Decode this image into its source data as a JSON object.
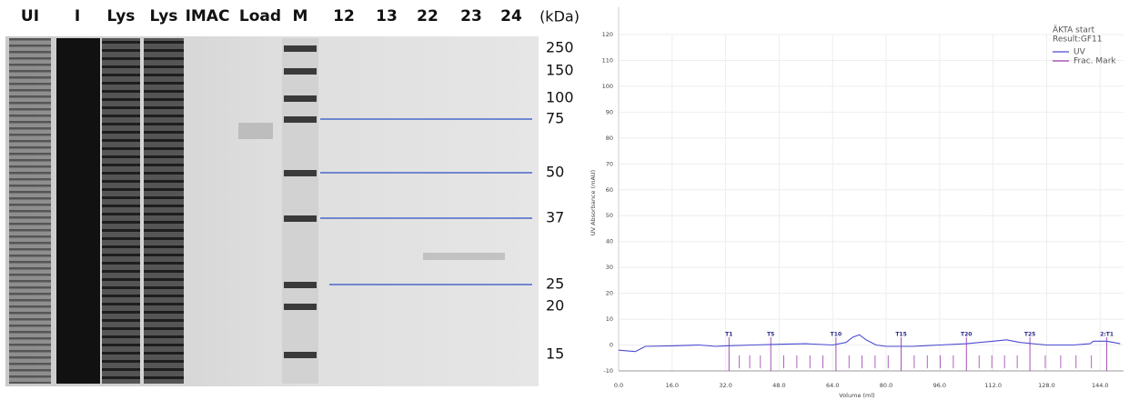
{
  "gel": {
    "lanes": [
      "UI",
      "I",
      "Lys",
      "Lys",
      "IMAC",
      "Load",
      "M",
      "12",
      "13",
      "22",
      "23",
      "24"
    ],
    "unit": "(kDa)",
    "markers": [
      "250",
      "150",
      "100",
      "75",
      "50",
      "37",
      "25",
      "20",
      "15"
    ]
  },
  "chart_data": {
    "type": "line",
    "legend_title": [
      "ÄKTA start",
      "Result:GF11"
    ],
    "xlabel": "Volume (ml)",
    "ylabel": "UV Absorbance (mAU)",
    "xlim": [
      0,
      151
    ],
    "ylim": [
      -10,
      120
    ],
    "xticks": [
      {
        "value": 0,
        "label": "0.0"
      },
      {
        "value": 16,
        "label": "16.0"
      },
      {
        "value": 32,
        "label": "32.0"
      },
      {
        "value": 48,
        "label": "48.0"
      },
      {
        "value": 64,
        "label": "64.0"
      },
      {
        "value": 80,
        "label": "80.0"
      },
      {
        "value": 96,
        "label": "96.0"
      },
      {
        "value": 112,
        "label": "112.0"
      },
      {
        "value": 128,
        "label": "128.0"
      },
      {
        "value": 144,
        "label": "144.0"
      }
    ],
    "yticks": [
      -10,
      0,
      10,
      20,
      30,
      40,
      50,
      60,
      70,
      80,
      90,
      100,
      110,
      120
    ],
    "grid": true,
    "x": [
      0,
      5,
      8,
      16,
      24,
      29,
      32,
      40,
      48,
      56,
      64,
      68,
      70,
      72,
      74,
      77,
      80,
      88,
      96,
      104,
      112,
      116,
      120,
      128,
      136,
      141,
      142,
      146,
      150
    ],
    "series": [
      {
        "name": "UV",
        "color": "#4b4bd1",
        "values": [
          -2,
          -2.5,
          -0.5,
          -0.3,
          0,
          -0.5,
          -0.3,
          0,
          0.3,
          0.5,
          0,
          1,
          3,
          4,
          2,
          0,
          -0.5,
          -0.5,
          0,
          0.5,
          1.5,
          2,
          1,
          0,
          0,
          0.5,
          1.5,
          1.5,
          0.5
        ]
      }
    ],
    "fractions": {
      "name": "Frac. Mark",
      "color": "#9b3cae",
      "x": [
        33,
        45.5,
        65,
        84.5,
        104,
        123,
        146
      ],
      "labels": [
        "T1",
        "T5",
        "T10",
        "T15",
        "T20",
        "T25",
        "2:T1"
      ],
      "minor_x": [
        36.1,
        39.2,
        42.4,
        49.4,
        53.3,
        57.2,
        61.1,
        68.9,
        72.8,
        76.7,
        80.6,
        88.4,
        92.3,
        96.2,
        100.1,
        107.8,
        111.6,
        115.4,
        119.2,
        127.6,
        132.2,
        136.8,
        141.4
      ]
    }
  }
}
